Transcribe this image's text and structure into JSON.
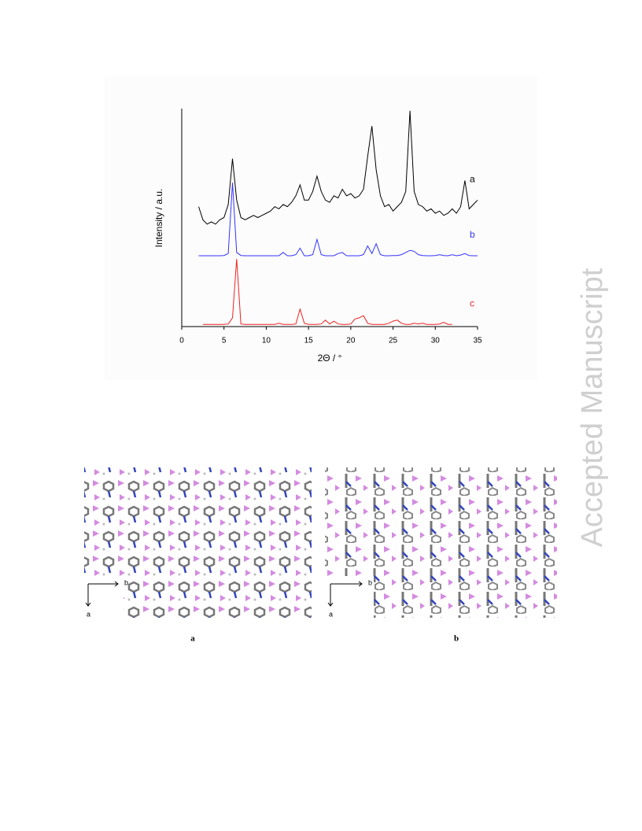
{
  "chart_data": {
    "type": "line",
    "xlabel": "2Θ / °",
    "ylabel": "Intensity / a.u.",
    "xlim": [
      0,
      35
    ],
    "xticks": [
      0,
      5,
      10,
      15,
      20,
      25,
      30,
      35
    ],
    "ylim": [
      0,
      100
    ],
    "series": [
      {
        "name": "a",
        "color": "#000000",
        "x": [
          2,
          2.5,
          3,
          3.5,
          4,
          4.5,
          5,
          5.5,
          6,
          6.5,
          7,
          7.5,
          8,
          8.5,
          9,
          9.5,
          10,
          10.5,
          11,
          11.5,
          12,
          12.5,
          13,
          13.5,
          14,
          14.5,
          15,
          15.5,
          16,
          16.5,
          17,
          17.5,
          18,
          18.5,
          19,
          19.5,
          20,
          20.5,
          21,
          21.5,
          22,
          22.5,
          23,
          23.5,
          24,
          24.5,
          25,
          25.5,
          26,
          26.5,
          27,
          27.5,
          28,
          28.5,
          29,
          29.5,
          30,
          30.5,
          31,
          31.5,
          32,
          32.5,
          33,
          33.5,
          34,
          34.5,
          35
        ],
        "values": [
          55,
          49,
          47,
          48,
          47,
          49,
          50,
          56,
          77,
          58,
          50,
          49,
          50,
          51,
          50,
          51,
          52,
          53,
          55,
          54,
          56,
          55,
          57,
          60,
          65,
          58,
          58,
          62,
          69,
          62,
          58,
          57,
          60,
          59,
          63,
          60,
          61,
          59,
          60,
          63,
          78,
          92,
          72,
          60,
          55,
          56,
          53,
          55,
          57,
          62,
          99,
          62,
          56,
          55,
          53,
          54,
          52,
          53,
          51,
          52,
          54,
          52,
          55,
          67,
          54,
          56,
          58
        ]
      },
      {
        "name": "b",
        "color": "#3333ff",
        "x": [
          2,
          2.5,
          3,
          3.5,
          4,
          4.5,
          5,
          5.5,
          6,
          6.5,
          7,
          7.5,
          8,
          8.5,
          9,
          9.5,
          10,
          10.5,
          11,
          11.5,
          12,
          12.5,
          13,
          13.5,
          14,
          14.5,
          15,
          15.5,
          16,
          16.5,
          17,
          17.5,
          18,
          18.5,
          19,
          19.5,
          20,
          20.5,
          21,
          21.5,
          22,
          22.5,
          23,
          23.5,
          24,
          24.5,
          25,
          25.5,
          26,
          26.5,
          27,
          27.5,
          28,
          28.5,
          29,
          29.5,
          30,
          30.5,
          31,
          31.5,
          32,
          32.5,
          33,
          33.5,
          34,
          34.5,
          35
        ],
        "values": [
          32.5,
          32.5,
          32.5,
          32.5,
          32.5,
          32.5,
          32.6,
          33.5,
          66,
          34,
          32.6,
          32.5,
          32.5,
          32.5,
          32.5,
          32.5,
          32.5,
          32.5,
          32.5,
          32.5,
          34,
          32.5,
          32.5,
          33,
          36,
          32.5,
          32.5,
          33,
          40,
          33,
          32.5,
          32.5,
          32.5,
          33.5,
          34,
          32.5,
          32.5,
          32.5,
          32.5,
          33,
          37,
          33.5,
          38,
          33,
          32.5,
          32.5,
          32.6,
          32.6,
          33,
          34,
          35,
          34.5,
          33,
          32.6,
          32.5,
          32.5,
          32.6,
          33,
          32.6,
          32.5,
          33,
          32.5,
          32.8,
          33.5,
          32.6,
          32.5,
          32.5
        ]
      },
      {
        "name": "c",
        "color": "#ee2222",
        "x": [
          2.5,
          3,
          3.5,
          4,
          4.5,
          5,
          5.5,
          6,
          6.5,
          7,
          7.5,
          8,
          8.5,
          9,
          9.5,
          10,
          10.5,
          11,
          11.5,
          12,
          12.5,
          13,
          13.5,
          14,
          14.5,
          15,
          15.5,
          16,
          16.5,
          17,
          17.5,
          18,
          18.5,
          19,
          19.5,
          20,
          20.5,
          21,
          21.5,
          22,
          22.5,
          23,
          23.5,
          24,
          24.5,
          25,
          25.5,
          26,
          26.5,
          27,
          27.5,
          28,
          28.5,
          29,
          29.5,
          30,
          30.5,
          31,
          31.5,
          32
        ],
        "values": [
          1,
          1,
          1,
          1,
          1,
          1,
          1.2,
          4,
          31,
          1.2,
          1,
          1,
          1,
          1,
          1,
          1,
          1,
          1,
          1.5,
          1,
          1,
          1,
          1.2,
          8,
          1.5,
          1,
          1,
          1,
          1.2,
          3,
          1.2,
          2.5,
          1.2,
          1,
          1,
          1.2,
          3.5,
          4,
          5,
          1.5,
          1,
          1,
          1,
          1,
          1.5,
          2.5,
          3,
          1.5,
          1,
          1,
          1.5,
          1.2,
          1.5,
          1,
          1,
          1,
          1.2,
          2,
          1,
          1
        ]
      }
    ]
  },
  "figures": [
    {
      "caption": "a",
      "axis_labels": [
        "b",
        "a"
      ]
    },
    {
      "caption": "b",
      "axis_labels": [
        "b",
        "a"
      ]
    }
  ],
  "watermark": "Accepted Manuscript"
}
